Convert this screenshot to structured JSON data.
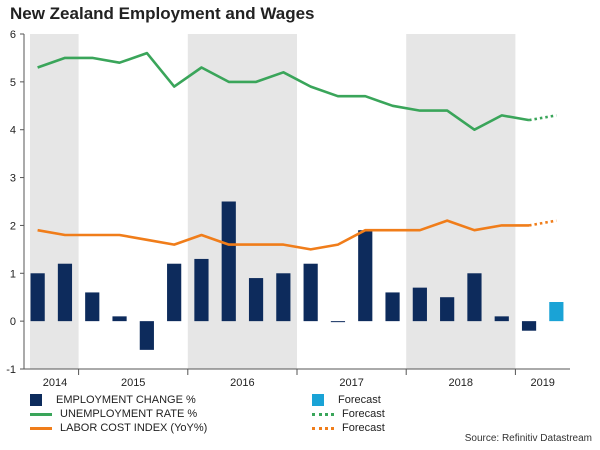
{
  "chart_data": {
    "type": "bar+line",
    "title": "New Zealand Employment and Wages",
    "ylim": [
      -1,
      6
    ],
    "yticks": [
      -1,
      0,
      1,
      2,
      3,
      4,
      5,
      6
    ],
    "year_labels": [
      "2014",
      "2015",
      "2016",
      "2017",
      "2018",
      "2019"
    ],
    "quarters": 20,
    "bars": {
      "name": "EMPLOYMENT CHANGE %",
      "color": "#0d2b5c",
      "values": [
        1.0,
        1.2,
        0.6,
        0.1,
        -0.6,
        1.2,
        1.3,
        2.5,
        0.9,
        1.0,
        1.2,
        0.0,
        1.9,
        0.6,
        0.7,
        0.5,
        1.0,
        0.1,
        -0.2
      ]
    },
    "forecast_bar": {
      "name": "Forecast",
      "color": "#1aa3d6",
      "value": 0.4
    },
    "series": [
      {
        "name": "UNEMPLOYMENT RATE %",
        "color": "#3aa55a",
        "values": [
          5.3,
          5.5,
          5.5,
          5.4,
          5.6,
          4.9,
          5.3,
          5.0,
          5.0,
          5.2,
          4.9,
          4.7,
          4.7,
          4.5,
          4.4,
          4.4,
          4.0,
          4.3,
          4.2
        ],
        "forecast": 4.3
      },
      {
        "name": "LABOR COST INDEX (YoY%)",
        "color": "#f07d1a",
        "values": [
          1.9,
          1.8,
          1.8,
          1.8,
          1.7,
          1.6,
          1.8,
          1.6,
          1.6,
          1.6,
          1.5,
          1.6,
          1.9,
          1.9,
          1.9,
          2.1,
          1.9,
          2.0,
          2.0
        ],
        "forecast": 2.1
      }
    ],
    "shaded_years": [
      "2014",
      "2016",
      "2018"
    ],
    "legend": {
      "employment": "EMPLOYMENT CHANGE %",
      "unemployment": "UNEMPLOYMENT RATE %",
      "labor": "LABOR COST INDEX (YoY%)",
      "forecast_bar": "Forecast",
      "forecast_unemp": "Forecast",
      "forecast_labor": "Forecast"
    },
    "source": "Source: Refinitiv Datastream"
  }
}
